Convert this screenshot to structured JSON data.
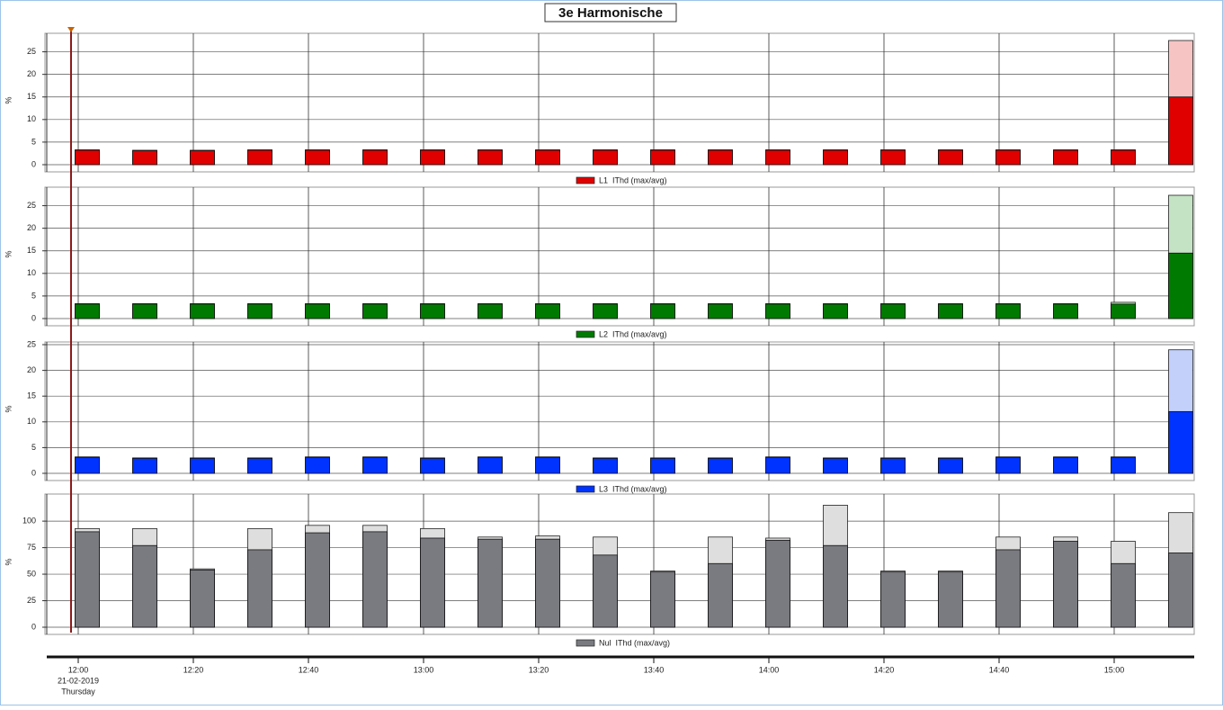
{
  "title": "3e Harmonische",
  "x_axis": {
    "categories": [
      "12:00",
      null,
      "12:20",
      null,
      "12:40",
      null,
      "13:00",
      null,
      "13:20",
      null,
      "13:40",
      null,
      "14:00",
      null,
      "14:20",
      null,
      "14:40",
      null,
      "15:00",
      null
    ],
    "date": "21-02-2019",
    "day": "Thursday"
  },
  "chart_data": [
    {
      "type": "bar",
      "ylabel": "%",
      "legend": "L1  IThd (max/avg)",
      "color": "#e00000",
      "max_color": "#f7c4c4",
      "values": [
        3.2,
        3.1,
        3.1,
        3.2,
        3.2,
        3.2,
        3.2,
        3.2,
        3.2,
        3.2,
        3.2,
        3.2,
        3.2,
        3.2,
        3.2,
        3.2,
        3.2,
        3.2,
        3.2,
        15
      ],
      "max_values": [
        3.3,
        3.2,
        3.2,
        3.3,
        3.3,
        3.3,
        3.3,
        3.3,
        3.3,
        3.3,
        3.3,
        3.3,
        3.3,
        3.3,
        3.3,
        3.3,
        3.3,
        3.3,
        3.3,
        27.5
      ],
      "ylim": [
        0,
        28.5
      ],
      "yticks": [
        0,
        5,
        10,
        15,
        20,
        25
      ],
      "grid": true
    },
    {
      "type": "bar",
      "ylabel": "%",
      "legend": "L2  IThd (max/avg)",
      "color": "#007a00",
      "max_color": "#c4e2c4",
      "values": [
        3.2,
        3.2,
        3.2,
        3.2,
        3.2,
        3.2,
        3.2,
        3.2,
        3.2,
        3.2,
        3.2,
        3.2,
        3.2,
        3.2,
        3.2,
        3.2,
        3.2,
        3.2,
        3.2,
        14.5
      ],
      "max_values": [
        3.3,
        3.3,
        3.3,
        3.3,
        3.3,
        3.3,
        3.3,
        3.3,
        3.3,
        3.3,
        3.3,
        3.3,
        3.3,
        3.3,
        3.3,
        3.3,
        3.3,
        3.3,
        3.6,
        27.3
      ],
      "ylim": [
        0,
        28.5
      ],
      "yticks": [
        0,
        5,
        10,
        15,
        20,
        25
      ],
      "grid": true
    },
    {
      "type": "bar",
      "ylabel": "%",
      "legend": "L3  IThd (max/avg)",
      "color": "#0033ff",
      "max_color": "#c2d0fa",
      "values": [
        3.1,
        2.9,
        2.9,
        2.9,
        3.1,
        3.1,
        2.9,
        3.1,
        3.1,
        2.9,
        2.9,
        2.9,
        3.1,
        2.9,
        2.9,
        2.9,
        3.1,
        3.1,
        3.1,
        12
      ],
      "max_values": [
        3.2,
        3,
        3,
        3,
        3.2,
        3.2,
        3,
        3.2,
        3.2,
        3,
        3,
        3,
        3.2,
        3,
        3,
        3,
        3.2,
        3.2,
        3.2,
        24
      ],
      "ylim": [
        0,
        25
      ],
      "yticks": [
        0,
        5,
        10,
        15,
        20,
        25
      ],
      "grid": true
    },
    {
      "type": "bar",
      "ylabel": "%",
      "legend": "Nul  IThd (max/avg)",
      "color": "#7a7b80",
      "max_color": "#dedede",
      "values": [
        90,
        77,
        54,
        73,
        89,
        90,
        84,
        83,
        83,
        68,
        52,
        60,
        82,
        77,
        52,
        52,
        73,
        81,
        60,
        70
      ],
      "max_values": [
        93,
        93,
        55,
        93,
        96,
        96,
        93,
        85,
        86,
        85,
        53,
        85,
        84,
        115,
        53,
        53,
        85,
        85,
        81,
        108
      ],
      "ylim": [
        0,
        123
      ],
      "yticks": [
        0,
        25,
        50,
        75,
        100
      ],
      "grid": true
    }
  ]
}
